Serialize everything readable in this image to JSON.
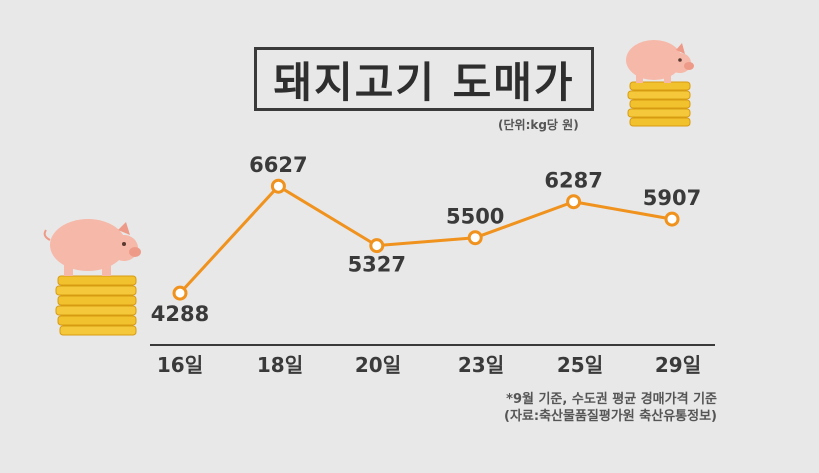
{
  "title": "돼지고기 도매가",
  "unit": "(단위:kg당 원)",
  "notes": {
    "line1": "*9월 기준, 수도권 평균 경매가격 기준",
    "line2": "(자료:축산물품질평가원 축산유통정보)"
  },
  "colors": {
    "line": "#f0921e",
    "axis": "#3a3a3a",
    "text": "#3a3a3a",
    "marker_fill": "#ffffff"
  },
  "chart_data": {
    "type": "line",
    "title": "돼지고기 도매가",
    "categories": [
      "16일",
      "18일",
      "20일",
      "23일",
      "25일",
      "29일"
    ],
    "values": [
      4288,
      6627,
      5327,
      5500,
      6287,
      5907
    ],
    "data_labels": [
      "4288",
      "6627",
      "5327",
      "5500",
      "6287",
      "5907"
    ],
    "ylim": [
      3700,
      7200
    ],
    "grid": false,
    "legend": "none"
  }
}
